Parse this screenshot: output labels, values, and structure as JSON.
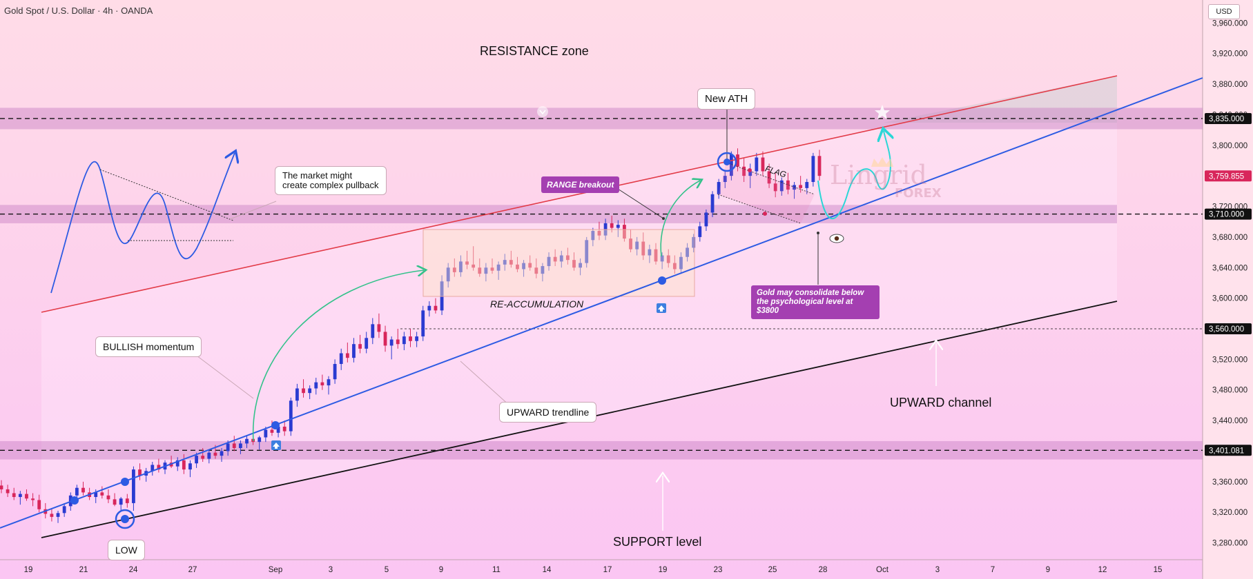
{
  "header": {
    "title": "Gold Spot / U.S. Dollar · 4h · OANDA",
    "currency": "USD"
  },
  "colors": {
    "bull": "#2a3bd1",
    "bear": "#d8265b",
    "resistance_line": "#e23a47",
    "trendline": "#2d5be3",
    "channel_line": "#111111",
    "zone": "#c77fc4",
    "curved_arrow": "#33c28a",
    "projection": "#2ad6d6",
    "tag_bg": "#a43fb1",
    "last_price_bg": "#d8265b"
  },
  "chart_data": {
    "type": "candlestick",
    "title": "Gold Spot / U.S. Dollar · 4h · OANDA",
    "y_axis": {
      "ylim": [
        3258,
        3990
      ],
      "ticks": [
        3280,
        3320,
        3360,
        3400,
        3440,
        3480,
        3520,
        3560,
        3600,
        3640,
        3680,
        3720,
        3760,
        3800,
        3840,
        3880,
        3920,
        3960
      ]
    },
    "x_axis": {
      "labels": [
        "19",
        "21",
        "24",
        "27",
        "Sep",
        "3",
        "5",
        "9",
        "11",
        "14",
        "17",
        "19",
        "23",
        "25",
        "28",
        "Oct",
        "3",
        "7",
        "9",
        "12",
        "15"
      ]
    },
    "marked_levels": [
      {
        "value": "3,835.000",
        "price": 3835
      },
      {
        "value": "3,710.000",
        "price": 3710
      },
      {
        "value": "3,560.000",
        "price": 3560
      },
      {
        "value": "3,401.081",
        "price": 3401.081
      }
    ],
    "last_price": {
      "value": "3,759.855",
      "price": 3759.855
    },
    "candles": [
      [
        3355,
        3362,
        3345,
        3350
      ],
      [
        3350,
        3356,
        3340,
        3345
      ],
      [
        3345,
        3352,
        3336,
        3340
      ],
      [
        3340,
        3348,
        3330,
        3344
      ],
      [
        3344,
        3350,
        3335,
        3338
      ],
      [
        3338,
        3345,
        3328,
        3336
      ],
      [
        3336,
        3343,
        3320,
        3324
      ],
      [
        3324,
        3332,
        3312,
        3318
      ],
      [
        3318,
        3325,
        3308,
        3314
      ],
      [
        3314,
        3322,
        3306,
        3319
      ],
      [
        3319,
        3332,
        3314,
        3328
      ],
      [
        3328,
        3346,
        3322,
        3342
      ],
      [
        3342,
        3356,
        3336,
        3352
      ],
      [
        3352,
        3360,
        3342,
        3346
      ],
      [
        3346,
        3352,
        3336,
        3340
      ],
      [
        3340,
        3350,
        3332,
        3346
      ],
      [
        3346,
        3354,
        3338,
        3342
      ],
      [
        3342,
        3350,
        3332,
        3337
      ],
      [
        3337,
        3345,
        3328,
        3330
      ],
      [
        3330,
        3340,
        3322,
        3338
      ],
      [
        3338,
        3344,
        3326,
        3332
      ],
      [
        3332,
        3380,
        3322,
        3376
      ],
      [
        3376,
        3384,
        3362,
        3368
      ],
      [
        3368,
        3378,
        3360,
        3374
      ],
      [
        3374,
        3386,
        3368,
        3382
      ],
      [
        3382,
        3390,
        3372,
        3376
      ],
      [
        3376,
        3388,
        3370,
        3385
      ],
      [
        3385,
        3394,
        3378,
        3380
      ],
      [
        3380,
        3392,
        3374,
        3388
      ],
      [
        3388,
        3396,
        3370,
        3376
      ],
      [
        3376,
        3388,
        3366,
        3384
      ],
      [
        3384,
        3398,
        3378,
        3394
      ],
      [
        3394,
        3404,
        3386,
        3390
      ],
      [
        3390,
        3402,
        3384,
        3398
      ],
      [
        3398,
        3408,
        3390,
        3394
      ],
      [
        3394,
        3404,
        3386,
        3400
      ],
      [
        3400,
        3414,
        3394,
        3410
      ],
      [
        3410,
        3420,
        3400,
        3404
      ],
      [
        3404,
        3414,
        3396,
        3410
      ],
      [
        3410,
        3420,
        3404,
        3416
      ],
      [
        3416,
        3426,
        3408,
        3412
      ],
      [
        3412,
        3420,
        3402,
        3418
      ],
      [
        3418,
        3432,
        3412,
        3428
      ],
      [
        3428,
        3440,
        3420,
        3424
      ],
      [
        3424,
        3436,
        3418,
        3432
      ],
      [
        3432,
        3440,
        3420,
        3426
      ],
      [
        3426,
        3470,
        3420,
        3466
      ],
      [
        3466,
        3488,
        3458,
        3482
      ],
      [
        3482,
        3494,
        3470,
        3476
      ],
      [
        3476,
        3486,
        3468,
        3482
      ],
      [
        3482,
        3496,
        3474,
        3490
      ],
      [
        3490,
        3500,
        3480,
        3486
      ],
      [
        3486,
        3498,
        3474,
        3494
      ],
      [
        3494,
        3520,
        3488,
        3514
      ],
      [
        3514,
        3534,
        3506,
        3528
      ],
      [
        3528,
        3542,
        3516,
        3522
      ],
      [
        3522,
        3548,
        3516,
        3540
      ],
      [
        3540,
        3552,
        3528,
        3534
      ],
      [
        3534,
        3556,
        3528,
        3548
      ],
      [
        3548,
        3574,
        3540,
        3566
      ],
      [
        3566,
        3580,
        3548,
        3556
      ],
      [
        3556,
        3564,
        3530,
        3538
      ],
      [
        3538,
        3550,
        3520,
        3546
      ],
      [
        3546,
        3560,
        3534,
        3540
      ],
      [
        3540,
        3556,
        3532,
        3550
      ],
      [
        3550,
        3560,
        3536,
        3544
      ],
      [
        3544,
        3556,
        3536,
        3550
      ],
      [
        3550,
        3590,
        3544,
        3584
      ],
      [
        3584,
        3596,
        3576,
        3590
      ],
      [
        3590,
        3600,
        3580,
        3584
      ],
      [
        3584,
        3630,
        3578,
        3622
      ],
      [
        3622,
        3646,
        3614,
        3640
      ],
      [
        3640,
        3652,
        3628,
        3634
      ],
      [
        3634,
        3656,
        3628,
        3648
      ],
      [
        3648,
        3662,
        3638,
        3644
      ],
      [
        3644,
        3668,
        3636,
        3640
      ],
      [
        3640,
        3652,
        3628,
        3632
      ],
      [
        3632,
        3646,
        3622,
        3640
      ],
      [
        3640,
        3652,
        3632,
        3636
      ],
      [
        3636,
        3648,
        3624,
        3644
      ],
      [
        3644,
        3658,
        3636,
        3650
      ],
      [
        3650,
        3662,
        3640,
        3644
      ],
      [
        3644,
        3654,
        3634,
        3638
      ],
      [
        3638,
        3650,
        3628,
        3646
      ],
      [
        3646,
        3656,
        3636,
        3640
      ],
      [
        3640,
        3652,
        3626,
        3632
      ],
      [
        3632,
        3646,
        3622,
        3642
      ],
      [
        3642,
        3660,
        3636,
        3654
      ],
      [
        3654,
        3664,
        3642,
        3648
      ],
      [
        3648,
        3662,
        3640,
        3656
      ],
      [
        3656,
        3666,
        3644,
        3650
      ],
      [
        3650,
        3660,
        3636,
        3640
      ],
      [
        3640,
        3652,
        3630,
        3646
      ],
      [
        3646,
        3680,
        3640,
        3676
      ],
      [
        3676,
        3692,
        3668,
        3688
      ],
      [
        3688,
        3700,
        3676,
        3682
      ],
      [
        3682,
        3704,
        3676,
        3698
      ],
      [
        3698,
        3708,
        3686,
        3692
      ],
      [
        3692,
        3702,
        3680,
        3696
      ],
      [
        3696,
        3704,
        3674,
        3678
      ],
      [
        3678,
        3690,
        3660,
        3664
      ],
      [
        3664,
        3680,
        3656,
        3674
      ],
      [
        3674,
        3686,
        3650,
        3656
      ],
      [
        3656,
        3670,
        3646,
        3664
      ],
      [
        3664,
        3672,
        3644,
        3648
      ],
      [
        3648,
        3660,
        3638,
        3656
      ],
      [
        3656,
        3664,
        3640,
        3646
      ],
      [
        3646,
        3656,
        3632,
        3638
      ],
      [
        3638,
        3660,
        3632,
        3654
      ],
      [
        3654,
        3672,
        3648,
        3666
      ],
      [
        3666,
        3684,
        3660,
        3680
      ],
      [
        3680,
        3700,
        3674,
        3694
      ],
      [
        3694,
        3716,
        3688,
        3712
      ],
      [
        3712,
        3740,
        3706,
        3736
      ],
      [
        3736,
        3756,
        3730,
        3752
      ],
      [
        3752,
        3766,
        3744,
        3760
      ],
      [
        3760,
        3792,
        3754,
        3788
      ],
      [
        3788,
        3796,
        3766,
        3772
      ],
      [
        3772,
        3784,
        3752,
        3760
      ],
      [
        3760,
        3776,
        3744,
        3766
      ],
      [
        3766,
        3790,
        3760,
        3784
      ],
      [
        3784,
        3792,
        3760,
        3766
      ],
      [
        3766,
        3776,
        3744,
        3750
      ],
      [
        3750,
        3764,
        3732,
        3740
      ],
      [
        3740,
        3758,
        3734,
        3754
      ],
      [
        3754,
        3764,
        3736,
        3742
      ],
      [
        3742,
        3752,
        3730,
        3748
      ],
      [
        3748,
        3760,
        3738,
        3744
      ],
      [
        3744,
        3756,
        3736,
        3752
      ],
      [
        3752,
        3790,
        3746,
        3786
      ],
      [
        3786,
        3794,
        3754,
        3760
      ]
    ],
    "annotations": [
      {
        "id": "resistance_zone",
        "text": "RESISTANCE zone"
      },
      {
        "id": "new_ath",
        "text": "New ATH"
      },
      {
        "id": "pullback",
        "text": "The market might create complex pullback"
      },
      {
        "id": "range_breakout",
        "text": "RANGE breakout"
      },
      {
        "id": "flag",
        "text": "FLAG"
      },
      {
        "id": "reacc",
        "text": "RE-ACCUMULATION"
      },
      {
        "id": "consolidate",
        "text": "Gold may consolidate below the psychological level at $3800"
      },
      {
        "id": "bullish",
        "text": "BULLISH momentum"
      },
      {
        "id": "upward_trendline",
        "text": "UPWARD trendline"
      },
      {
        "id": "upward_channel",
        "text": "UPWARD channel"
      },
      {
        "id": "low",
        "text": "LOW"
      },
      {
        "id": "support",
        "text": "SUPPORT level"
      }
    ],
    "watermark": {
      "brand": "Lingrid",
      "sub": "FOREX"
    }
  }
}
